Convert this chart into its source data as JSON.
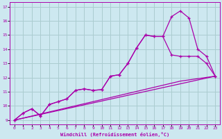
{
  "xlabel": "Windchill (Refroidissement éolien,°C)",
  "xlim": [
    -0.5,
    23.5
  ],
  "ylim": [
    8.7,
    17.3
  ],
  "xticks": [
    0,
    1,
    2,
    3,
    4,
    5,
    6,
    7,
    8,
    9,
    10,
    11,
    12,
    13,
    14,
    15,
    16,
    17,
    18,
    19,
    20,
    21,
    22,
    23
  ],
  "yticks": [
    9,
    10,
    11,
    12,
    13,
    14,
    15,
    16,
    17
  ],
  "bg_color": "#cde8f0",
  "grid_color": "#aaccd0",
  "line_color": "#aa00aa",
  "line1_x": [
    0,
    1,
    2,
    3,
    4,
    5,
    6,
    7,
    8,
    9,
    10,
    11,
    12,
    13,
    14,
    15,
    16,
    17,
    18,
    19,
    20,
    21,
    22,
    23
  ],
  "line1_y": [
    9.0,
    9.5,
    9.8,
    9.3,
    10.1,
    10.3,
    10.5,
    11.1,
    11.2,
    11.1,
    11.15,
    12.1,
    12.2,
    13.0,
    14.1,
    15.0,
    14.9,
    14.9,
    16.3,
    16.7,
    16.2,
    14.0,
    13.5,
    12.1
  ],
  "line2_x": [
    0,
    1,
    2,
    3,
    4,
    5,
    6,
    7,
    8,
    9,
    10,
    11,
    12,
    13,
    14,
    15,
    16,
    17,
    18,
    19,
    20,
    21,
    22,
    23
  ],
  "line2_y": [
    9.0,
    9.5,
    9.8,
    9.3,
    10.1,
    10.3,
    10.5,
    11.1,
    11.2,
    11.1,
    11.15,
    12.1,
    12.2,
    13.0,
    14.1,
    15.0,
    14.9,
    14.9,
    13.6,
    13.5,
    13.5,
    13.5,
    13.0,
    12.1
  ],
  "line3_x": [
    0,
    23
  ],
  "line3_y": [
    9.0,
    12.1
  ],
  "line4_x": [
    0,
    19,
    23
  ],
  "line4_y": [
    9.0,
    11.75,
    12.1
  ]
}
